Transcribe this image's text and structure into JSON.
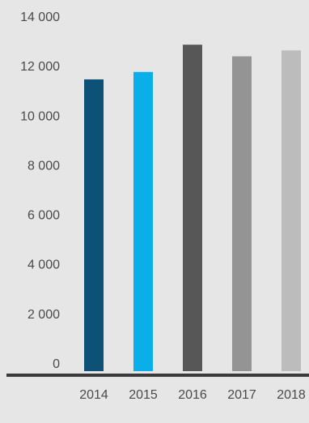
{
  "chart_data": {
    "type": "bar",
    "title": "",
    "xlabel": "",
    "ylabel": "",
    "categories": [
      "2014",
      "2015",
      "2016",
      "2017",
      "2018"
    ],
    "values": [
      11450,
      11750,
      12850,
      12380,
      12620
    ],
    "bar_colors": [
      "#0d5177",
      "#0aaee8",
      "#575757",
      "#949494",
      "#bcbcbc"
    ],
    "ylim": [
      0,
      14000
    ],
    "yticks": [
      0,
      2000,
      4000,
      6000,
      8000,
      10000,
      12000,
      14000
    ],
    "ytick_labels": [
      "0",
      "2 000",
      "4 000",
      "6 000",
      "8 000",
      "10 000",
      "12 000",
      "14 000"
    ],
    "grid": false,
    "legend": "none",
    "background": "#e6e6e7",
    "axis_line_color": "#3a3a3a"
  }
}
